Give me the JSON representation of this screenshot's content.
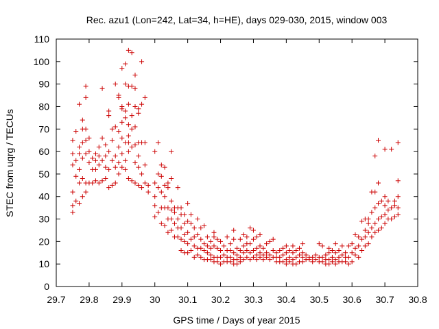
{
  "chart_data": {
    "type": "scatter",
    "title": "Rec. azu1 (Lon=242, Lat=34, h=HE), days 029-030, 2015, window 003",
    "xlabel": "GPS time / Days of year 2015",
    "ylabel": "STEC from uqrg / TECUs",
    "xlim": [
      29.7,
      30.8
    ],
    "ylim": [
      0,
      110
    ],
    "xticks": [
      "29.7",
      "29.8",
      "29.9",
      "30",
      "30.1",
      "30.2",
      "30.3",
      "30.4",
      "30.5",
      "30.6",
      "30.7",
      "30.8"
    ],
    "yticks": [
      "0",
      "10",
      "20",
      "30",
      "40",
      "50",
      "60",
      "70",
      "80",
      "90",
      "100",
      "110"
    ],
    "grid": false,
    "marker": "+",
    "color": "#cc0000",
    "points": [
      [
        29.75,
        33
      ],
      [
        29.75,
        36
      ],
      [
        29.75,
        42
      ],
      [
        29.75,
        54
      ],
      [
        29.75,
        59
      ],
      [
        29.75,
        65
      ],
      [
        29.76,
        38
      ],
      [
        29.76,
        49
      ],
      [
        29.76,
        56
      ],
      [
        29.76,
        69
      ],
      [
        29.77,
        37
      ],
      [
        29.77,
        46
      ],
      [
        29.77,
        52
      ],
      [
        29.77,
        59
      ],
      [
        29.77,
        62
      ],
      [
        29.77,
        81
      ],
      [
        29.78,
        40
      ],
      [
        29.78,
        48
      ],
      [
        29.78,
        57
      ],
      [
        29.78,
        64
      ],
      [
        29.78,
        70
      ],
      [
        29.78,
        74
      ],
      [
        29.79,
        42
      ],
      [
        29.79,
        46
      ],
      [
        29.79,
        59
      ],
      [
        29.79,
        65
      ],
      [
        29.79,
        70
      ],
      [
        29.79,
        84
      ],
      [
        29.79,
        89
      ],
      [
        29.8,
        46
      ],
      [
        29.8,
        55
      ],
      [
        29.8,
        60
      ],
      [
        29.8,
        66
      ],
      [
        29.81,
        46
      ],
      [
        29.81,
        52
      ],
      [
        29.81,
        57
      ],
      [
        29.82,
        47
      ],
      [
        29.82,
        52
      ],
      [
        29.82,
        56
      ],
      [
        29.82,
        59
      ],
      [
        29.83,
        46
      ],
      [
        29.83,
        54
      ],
      [
        29.83,
        58
      ],
      [
        29.83,
        62
      ],
      [
        29.84,
        47
      ],
      [
        29.84,
        56
      ],
      [
        29.84,
        66
      ],
      [
        29.84,
        88
      ],
      [
        29.85,
        48
      ],
      [
        29.85,
        53
      ],
      [
        29.85,
        58
      ],
      [
        29.85,
        63
      ],
      [
        29.86,
        44
      ],
      [
        29.86,
        52
      ],
      [
        29.86,
        60
      ],
      [
        29.86,
        76
      ],
      [
        29.86,
        78
      ],
      [
        29.87,
        45
      ],
      [
        29.87,
        56
      ],
      [
        29.87,
        65
      ],
      [
        29.87,
        70
      ],
      [
        29.88,
        46
      ],
      [
        29.88,
        53
      ],
      [
        29.88,
        58
      ],
      [
        29.88,
        71
      ],
      [
        29.88,
        90
      ],
      [
        29.89,
        50
      ],
      [
        29.89,
        55
      ],
      [
        29.89,
        62
      ],
      [
        29.89,
        69
      ],
      [
        29.89,
        84
      ],
      [
        29.89,
        85
      ],
      [
        29.9,
        53
      ],
      [
        29.9,
        59
      ],
      [
        29.9,
        66
      ],
      [
        29.9,
        73
      ],
      [
        29.9,
        79
      ],
      [
        29.9,
        80
      ],
      [
        29.9,
        97
      ],
      [
        29.91,
        52
      ],
      [
        29.91,
        56
      ],
      [
        29.91,
        64
      ],
      [
        29.91,
        75
      ],
      [
        29.91,
        78
      ],
      [
        29.91,
        90
      ],
      [
        29.91,
        99
      ],
      [
        29.92,
        48
      ],
      [
        29.92,
        60
      ],
      [
        29.92,
        64
      ],
      [
        29.92,
        67
      ],
      [
        29.92,
        72
      ],
      [
        29.92,
        81
      ],
      [
        29.92,
        89
      ],
      [
        29.92,
        105
      ],
      [
        29.93,
        47
      ],
      [
        29.93,
        62
      ],
      [
        29.93,
        70
      ],
      [
        29.93,
        76
      ],
      [
        29.93,
        89
      ],
      [
        29.93,
        104
      ],
      [
        29.94,
        46
      ],
      [
        29.94,
        55
      ],
      [
        29.94,
        63
      ],
      [
        29.94,
        71
      ],
      [
        29.94,
        80
      ],
      [
        29.94,
        88
      ],
      [
        29.94,
        94
      ],
      [
        29.95,
        45
      ],
      [
        29.95,
        53
      ],
      [
        29.95,
        58
      ],
      [
        29.95,
        64
      ],
      [
        29.95,
        77
      ],
      [
        29.95,
        79
      ],
      [
        29.96,
        44
      ],
      [
        29.96,
        50
      ],
      [
        29.96,
        64
      ],
      [
        29.96,
        81
      ],
      [
        29.96,
        100
      ],
      [
        29.97,
        46
      ],
      [
        29.97,
        54
      ],
      [
        29.97,
        64
      ],
      [
        29.97,
        84
      ],
      [
        29.98,
        42
      ],
      [
        29.98,
        45
      ],
      [
        30.0,
        31
      ],
      [
        30.0,
        36
      ],
      [
        30.0,
        40
      ],
      [
        30.0,
        46
      ],
      [
        30.0,
        60
      ],
      [
        30.01,
        33
      ],
      [
        30.01,
        44
      ],
      [
        30.01,
        50
      ],
      [
        30.01,
        64
      ],
      [
        30.02,
        28
      ],
      [
        30.02,
        35
      ],
      [
        30.02,
        42
      ],
      [
        30.02,
        49
      ],
      [
        30.02,
        54
      ],
      [
        30.03,
        27
      ],
      [
        30.03,
        35
      ],
      [
        30.03,
        40
      ],
      [
        30.03,
        45
      ],
      [
        30.03,
        53
      ],
      [
        30.04,
        24
      ],
      [
        30.04,
        30
      ],
      [
        30.04,
        35
      ],
      [
        30.04,
        44
      ],
      [
        30.04,
        46
      ],
      [
        30.05,
        25
      ],
      [
        30.05,
        30
      ],
      [
        30.05,
        34
      ],
      [
        30.05,
        38
      ],
      [
        30.05,
        48
      ],
      [
        30.05,
        60
      ],
      [
        30.06,
        22
      ],
      [
        30.06,
        28
      ],
      [
        30.06,
        33
      ],
      [
        30.06,
        35
      ],
      [
        30.07,
        22
      ],
      [
        30.07,
        26
      ],
      [
        30.07,
        30
      ],
      [
        30.07,
        35
      ],
      [
        30.07,
        44
      ],
      [
        30.08,
        16
      ],
      [
        30.08,
        21
      ],
      [
        30.08,
        26
      ],
      [
        30.08,
        32
      ],
      [
        30.08,
        35
      ],
      [
        30.09,
        15
      ],
      [
        30.09,
        20
      ],
      [
        30.09,
        23
      ],
      [
        30.09,
        28
      ],
      [
        30.09,
        32
      ],
      [
        30.1,
        15
      ],
      [
        30.1,
        19
      ],
      [
        30.1,
        24
      ],
      [
        30.1,
        29
      ],
      [
        30.1,
        37
      ],
      [
        30.11,
        16
      ],
      [
        30.11,
        21
      ],
      [
        30.11,
        28
      ],
      [
        30.11,
        32
      ],
      [
        30.12,
        13
      ],
      [
        30.12,
        18
      ],
      [
        30.12,
        22
      ],
      [
        30.12,
        26
      ],
      [
        30.13,
        14
      ],
      [
        30.13,
        17
      ],
      [
        30.13,
        23
      ],
      [
        30.13,
        30
      ],
      [
        30.14,
        13
      ],
      [
        30.14,
        17
      ],
      [
        30.14,
        21
      ],
      [
        30.14,
        26
      ],
      [
        30.15,
        12
      ],
      [
        30.15,
        16
      ],
      [
        30.15,
        19
      ],
      [
        30.15,
        27
      ],
      [
        30.16,
        12
      ],
      [
        30.16,
        15
      ],
      [
        30.16,
        18
      ],
      [
        30.16,
        22
      ],
      [
        30.17,
        12
      ],
      [
        30.17,
        14
      ],
      [
        30.17,
        17
      ],
      [
        30.17,
        20
      ],
      [
        30.18,
        11
      ],
      [
        30.18,
        13
      ],
      [
        30.18,
        18
      ],
      [
        30.18,
        22
      ],
      [
        30.18,
        24
      ],
      [
        30.19,
        11
      ],
      [
        30.19,
        13
      ],
      [
        30.19,
        17
      ],
      [
        30.19,
        21
      ],
      [
        30.2,
        10
      ],
      [
        30.2,
        13
      ],
      [
        30.2,
        16
      ],
      [
        30.2,
        20
      ],
      [
        30.21,
        11
      ],
      [
        30.21,
        14
      ],
      [
        30.21,
        18
      ],
      [
        30.22,
        11
      ],
      [
        30.22,
        13
      ],
      [
        30.22,
        16
      ],
      [
        30.22,
        22
      ],
      [
        30.23,
        11
      ],
      [
        30.23,
        13
      ],
      [
        30.23,
        16
      ],
      [
        30.23,
        19
      ],
      [
        30.24,
        10
      ],
      [
        30.24,
        12
      ],
      [
        30.24,
        15
      ],
      [
        30.24,
        21
      ],
      [
        30.24,
        25
      ],
      [
        30.25,
        10
      ],
      [
        30.25,
        12
      ],
      [
        30.25,
        14
      ],
      [
        30.25,
        17
      ],
      [
        30.26,
        11
      ],
      [
        30.26,
        13
      ],
      [
        30.26,
        16
      ],
      [
        30.26,
        21
      ],
      [
        30.27,
        12
      ],
      [
        30.27,
        15
      ],
      [
        30.27,
        18
      ],
      [
        30.27,
        23
      ],
      [
        30.28,
        13
      ],
      [
        30.28,
        16
      ],
      [
        30.28,
        19
      ],
      [
        30.28,
        22
      ],
      [
        30.29,
        12
      ],
      [
        30.29,
        15
      ],
      [
        30.29,
        19
      ],
      [
        30.29,
        26
      ],
      [
        30.3,
        13
      ],
      [
        30.3,
        16
      ],
      [
        30.3,
        21
      ],
      [
        30.3,
        25
      ],
      [
        30.31,
        12
      ],
      [
        30.31,
        14
      ],
      [
        30.31,
        17
      ],
      [
        30.31,
        22
      ],
      [
        30.32,
        13
      ],
      [
        30.32,
        15
      ],
      [
        30.32,
        18
      ],
      [
        30.32,
        23
      ],
      [
        30.33,
        12
      ],
      [
        30.33,
        14
      ],
      [
        30.33,
        17
      ],
      [
        30.34,
        13
      ],
      [
        30.34,
        15
      ],
      [
        30.34,
        19
      ],
      [
        30.35,
        12
      ],
      [
        30.35,
        14
      ],
      [
        30.35,
        20
      ],
      [
        30.36,
        13
      ],
      [
        30.36,
        16
      ],
      [
        30.36,
        21
      ],
      [
        30.37,
        11
      ],
      [
        30.37,
        13
      ],
      [
        30.37,
        15
      ],
      [
        30.38,
        11
      ],
      [
        30.38,
        13
      ],
      [
        30.38,
        16
      ],
      [
        30.39,
        11
      ],
      [
        30.39,
        14
      ],
      [
        30.39,
        17
      ],
      [
        30.4,
        10
      ],
      [
        30.4,
        12
      ],
      [
        30.4,
        15
      ],
      [
        30.4,
        18
      ],
      [
        30.41,
        11
      ],
      [
        30.41,
        13
      ],
      [
        30.41,
        16
      ],
      [
        30.42,
        10
      ],
      [
        30.42,
        12
      ],
      [
        30.42,
        15
      ],
      [
        30.42,
        18
      ],
      [
        30.43,
        10
      ],
      [
        30.43,
        13
      ],
      [
        30.43,
        16
      ],
      [
        30.44,
        11
      ],
      [
        30.44,
        14
      ],
      [
        30.44,
        17
      ],
      [
        30.45,
        11
      ],
      [
        30.45,
        13
      ],
      [
        30.45,
        15
      ],
      [
        30.45,
        19
      ],
      [
        30.46,
        12
      ],
      [
        30.46,
        14
      ],
      [
        30.47,
        12
      ],
      [
        30.47,
        13
      ],
      [
        30.48,
        11
      ],
      [
        30.48,
        13
      ],
      [
        30.49,
        12
      ],
      [
        30.49,
        14
      ],
      [
        30.5,
        11
      ],
      [
        30.5,
        13
      ],
      [
        30.5,
        19
      ],
      [
        30.51,
        11
      ],
      [
        30.51,
        13
      ],
      [
        30.51,
        18
      ],
      [
        30.52,
        10
      ],
      [
        30.52,
        12
      ],
      [
        30.52,
        14
      ],
      [
        30.53,
        10
      ],
      [
        30.53,
        12
      ],
      [
        30.53,
        15
      ],
      [
        30.53,
        17
      ],
      [
        30.54,
        11
      ],
      [
        30.54,
        13
      ],
      [
        30.54,
        16
      ],
      [
        30.55,
        10
      ],
      [
        30.55,
        12
      ],
      [
        30.55,
        15
      ],
      [
        30.55,
        19
      ],
      [
        30.56,
        11
      ],
      [
        30.56,
        13
      ],
      [
        30.56,
        16
      ],
      [
        30.57,
        11
      ],
      [
        30.57,
        14
      ],
      [
        30.57,
        18
      ],
      [
        30.58,
        11
      ],
      [
        30.58,
        13
      ],
      [
        30.58,
        15
      ],
      [
        30.59,
        10
      ],
      [
        30.59,
        13
      ],
      [
        30.59,
        18
      ],
      [
        30.6,
        11
      ],
      [
        30.6,
        15
      ],
      [
        30.6,
        19
      ],
      [
        30.61,
        14
      ],
      [
        30.61,
        17
      ],
      [
        30.61,
        23
      ],
      [
        30.62,
        13
      ],
      [
        30.62,
        18
      ],
      [
        30.62,
        22
      ],
      [
        30.63,
        16
      ],
      [
        30.63,
        21
      ],
      [
        30.63,
        29
      ],
      [
        30.64,
        18
      ],
      [
        30.64,
        22
      ],
      [
        30.64,
        25
      ],
      [
        30.64,
        30
      ],
      [
        30.65,
        19
      ],
      [
        30.65,
        24
      ],
      [
        30.65,
        28
      ],
      [
        30.65,
        30
      ],
      [
        30.66,
        22
      ],
      [
        30.66,
        26
      ],
      [
        30.66,
        33
      ],
      [
        30.66,
        42
      ],
      [
        30.67,
        24
      ],
      [
        30.67,
        28
      ],
      [
        30.67,
        35
      ],
      [
        30.67,
        42
      ],
      [
        30.67,
        58
      ],
      [
        30.68,
        25
      ],
      [
        30.68,
        30
      ],
      [
        30.68,
        37
      ],
      [
        30.68,
        46
      ],
      [
        30.68,
        65
      ],
      [
        30.69,
        26
      ],
      [
        30.69,
        31
      ],
      [
        30.69,
        38
      ],
      [
        30.7,
        28
      ],
      [
        30.7,
        32
      ],
      [
        30.7,
        36
      ],
      [
        30.7,
        40
      ],
      [
        30.7,
        61
      ],
      [
        30.71,
        30
      ],
      [
        30.71,
        34
      ],
      [
        30.71,
        38
      ],
      [
        30.72,
        30
      ],
      [
        30.72,
        35
      ],
      [
        30.72,
        61
      ],
      [
        30.73,
        31
      ],
      [
        30.73,
        36
      ],
      [
        30.73,
        38
      ],
      [
        30.74,
        32
      ],
      [
        30.74,
        35
      ],
      [
        30.74,
        40
      ],
      [
        30.74,
        47
      ],
      [
        30.74,
        64
      ]
    ]
  }
}
